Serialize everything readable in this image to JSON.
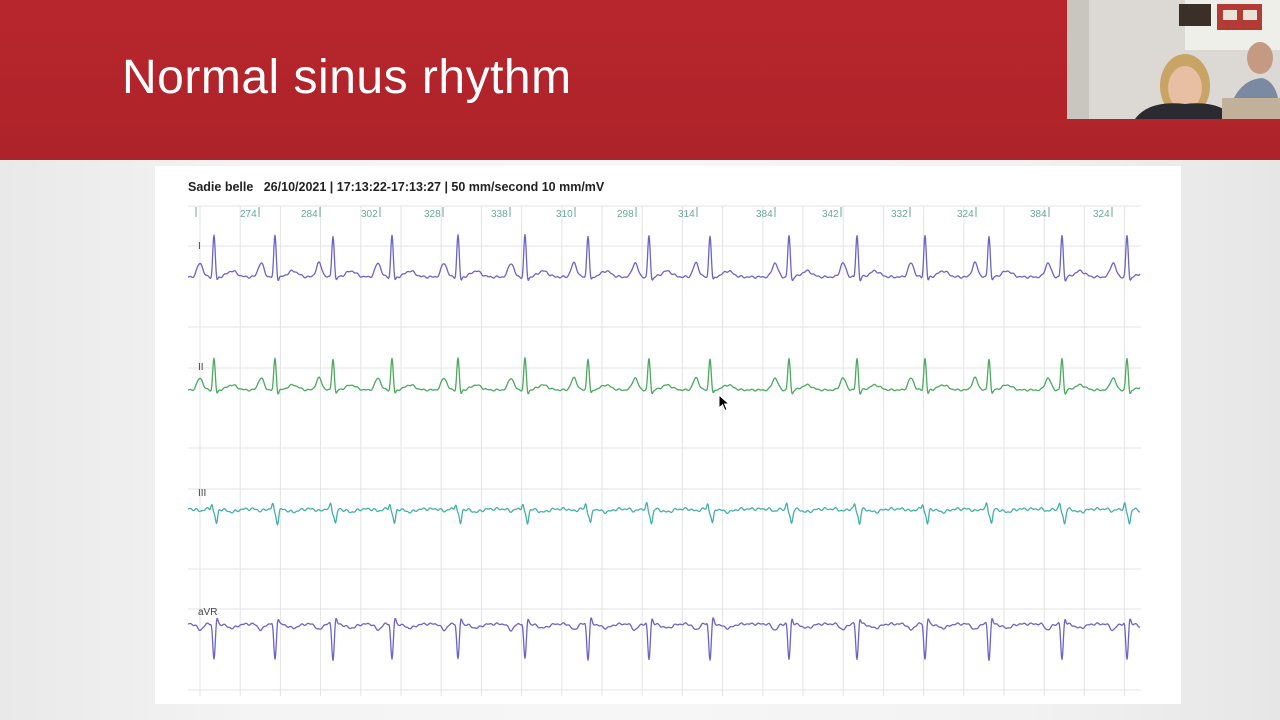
{
  "slide": {
    "title": "Normal sinus rhythm"
  },
  "webcam": {
    "icon": "presenter-video-icon"
  },
  "ecg": {
    "patient": "Sadie belle",
    "recording_info": "26/10/2021 | 17:13:22-17:13:27 | 50 mm/second 10 mm/mV",
    "rr_intervals": [
      "274",
      "284",
      "302",
      "328",
      "338",
      "310",
      "298",
      "314",
      "384",
      "342",
      "332",
      "324",
      "384",
      "324"
    ],
    "leads": [
      "I",
      "II",
      "III",
      "aVR"
    ],
    "colors": {
      "I": "#6b63c9",
      "II": "#4aaa5e",
      "III": "#44b0a8",
      "aVR": "#6b63c9",
      "grid": "#e3e3e3",
      "interval_labels": "#6aa79a"
    }
  }
}
